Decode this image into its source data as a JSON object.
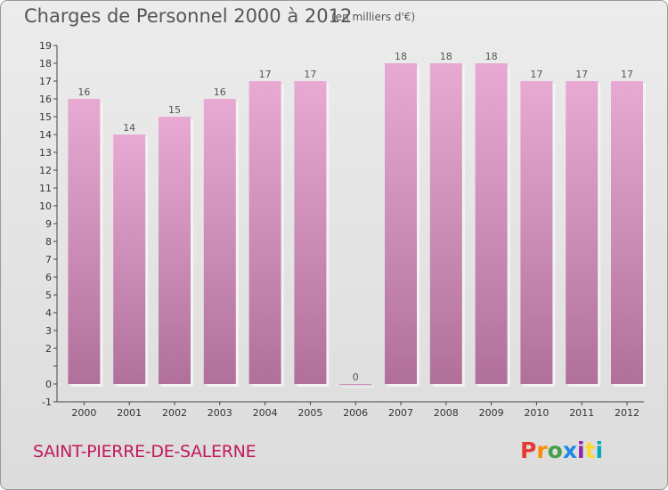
{
  "header": {
    "title": "Charges de Personnel 2000 à 2012",
    "subtitle": "(en milliers d'€)"
  },
  "footer": {
    "commune": "SAINT-PIERRE-DE-SALERNE",
    "logo_text": "Proxiti"
  },
  "colors": {
    "bar_top": "#e8aad2",
    "bar_bottom": "#b0709a",
    "bar_shadow": "#f3f3f3",
    "axis": "#444444",
    "text": "#555555",
    "commune": "#c2185b",
    "logo": [
      "#e53935",
      "#fb8c00",
      "#43a047",
      "#1e88e5",
      "#8e24aa",
      "#fdd835",
      "#00acc1"
    ]
  },
  "chart_data": {
    "type": "bar",
    "categories": [
      "2000",
      "2001",
      "2002",
      "2003",
      "2004",
      "2005",
      "2006",
      "2007",
      "2008",
      "2009",
      "2010",
      "2011",
      "2012"
    ],
    "values": [
      16,
      14,
      15,
      16,
      17,
      17,
      0,
      18,
      18,
      18,
      17,
      17,
      17
    ],
    "data_labels": [
      "16",
      "14",
      "15",
      "16",
      "17",
      "17",
      "0",
      "18",
      "18",
      "18",
      "17",
      "17",
      "17"
    ],
    "title": "Charges de Personnel 2000 à 2012",
    "subtitle": "(en milliers d'€)",
    "xlabel": "",
    "ylabel": "",
    "ylim": [
      -1,
      19
    ],
    "yticks": [
      -1,
      0,
      1,
      2,
      3,
      4,
      5,
      6,
      7,
      8,
      9,
      10,
      11,
      12,
      13,
      14,
      15,
      16,
      17,
      18,
      19
    ],
    "ytick_labels": [
      "-1",
      "0",
      "",
      "2",
      "3",
      "4",
      "5",
      "6",
      "7",
      "8",
      "9",
      "10",
      "11",
      "12",
      "13",
      "14",
      "15",
      "16",
      "17",
      "18",
      "19"
    ],
    "grid": false,
    "legend": "none"
  }
}
